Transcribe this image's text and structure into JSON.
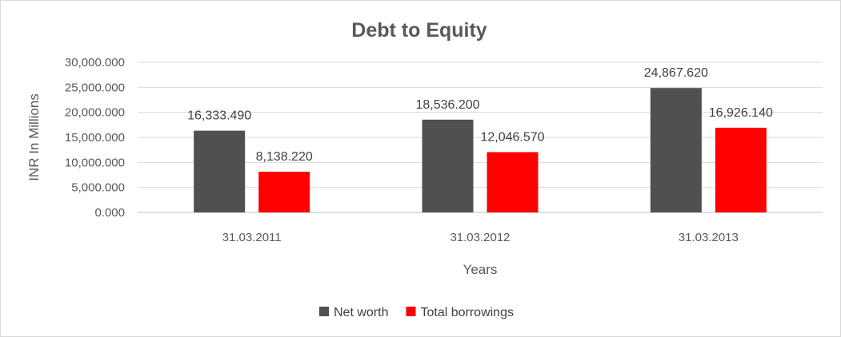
{
  "chart_data": {
    "type": "bar",
    "title": "Debt to Equity",
    "xlabel": "Years",
    "ylabel": "INR In Millions",
    "categories": [
      "31.03.2011",
      "31.03.2012",
      "31.03.2013"
    ],
    "series": [
      {
        "name": "Net worth",
        "color": "#505050",
        "values": [
          16333.49,
          18536.2,
          24867.62
        ]
      },
      {
        "name": "Total borrowings",
        "color": "#ff0000",
        "values": [
          8138.22,
          12046.57,
          16926.14
        ]
      }
    ],
    "data_labels": [
      [
        "16,333.490",
        "18,536.200",
        "24,867.620"
      ],
      [
        "8,138.220",
        "12,046.570",
        "16,926.140"
      ]
    ],
    "ylim": [
      0,
      30000
    ],
    "yticks": [
      0,
      5000,
      10000,
      15000,
      20000,
      25000,
      30000
    ],
    "ytick_labels": [
      "0.000",
      "5,000.000",
      "10,000.000",
      "15,000.000",
      "20,000.000",
      "25,000.000",
      "30,000.000"
    ],
    "grid": true,
    "legend_position": "bottom"
  }
}
